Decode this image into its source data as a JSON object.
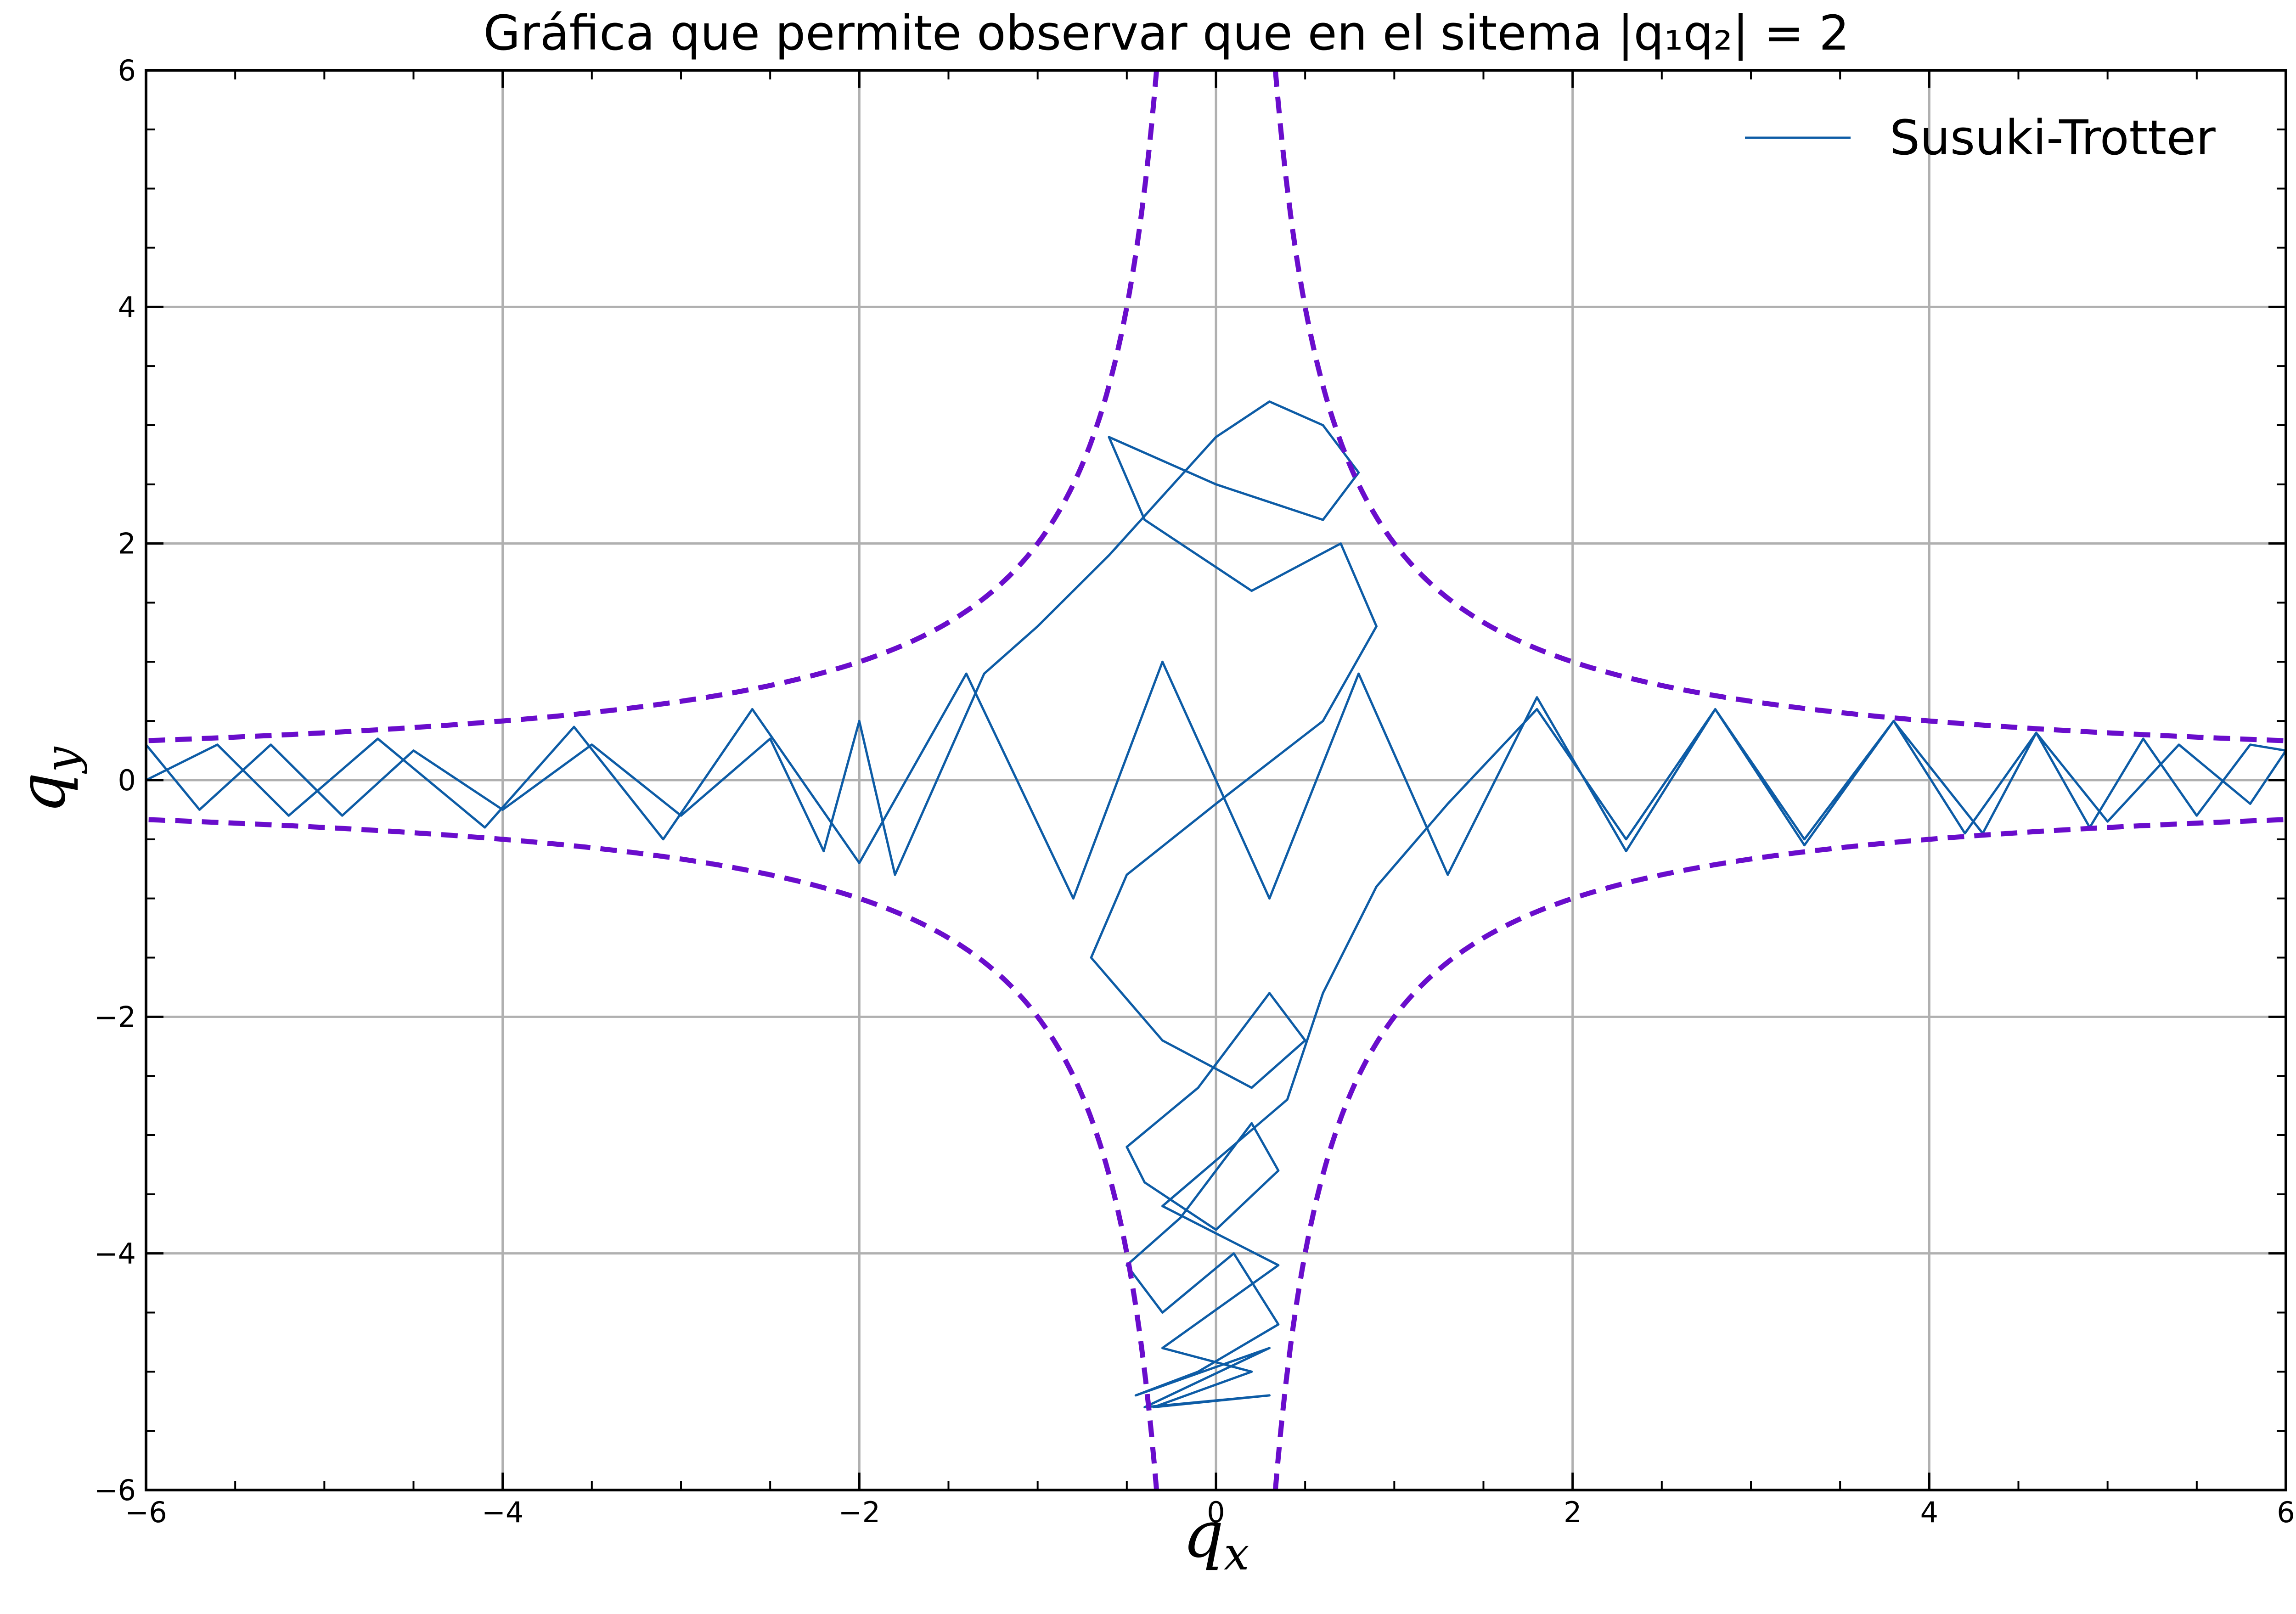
{
  "chart_data": {
    "type": "line",
    "title": "Gráfica que permite observar que en el sitema |q₁q₂| = 2",
    "xlabel": {
      "base": "q",
      "sub": "x"
    },
    "ylabel": {
      "base": "q",
      "sub": "y"
    },
    "xlim": [
      -6,
      6
    ],
    "ylim": [
      -6,
      6
    ],
    "xticks": [
      -6,
      -4,
      -2,
      0,
      2,
      4,
      6
    ],
    "yticks": [
      -6,
      -4,
      -2,
      0,
      2,
      4,
      6
    ],
    "xtick_labels": [
      "−6",
      "−4",
      "−2",
      "0",
      "2",
      "4",
      "6"
    ],
    "ytick_labels": [
      "−6",
      "−4",
      "−2",
      "0",
      "2",
      "4",
      "6"
    ],
    "minor_step": 0.5,
    "grid": true,
    "legend": {
      "position": "top-right",
      "entries": [
        "Susuki-Trotter"
      ]
    },
    "boundary": {
      "relation": "|q1 q2| = 2",
      "product": 2,
      "color": "#6a0dcc",
      "style": "dashed"
    },
    "series": [
      {
        "name": "Susuki-Trotter",
        "color": "#0d5ca6",
        "x": [
          -6.0,
          -5.7,
          -5.3,
          -4.9,
          -4.5,
          -4.0,
          -3.5,
          -3.0,
          -2.5,
          -2.2,
          -2.0,
          -1.8,
          -1.3,
          -1.0,
          -0.6,
          -0.3,
          0.0,
          0.3,
          0.6,
          0.8,
          0.6,
          0.0,
          -0.6,
          -0.4,
          0.2,
          0.7,
          0.9,
          0.6,
          0.0,
          -0.5,
          -0.7,
          -0.3,
          0.2,
          0.5,
          0.3,
          -0.1,
          -0.5,
          -0.4,
          0.0,
          0.35,
          0.2,
          -0.2,
          -0.5,
          -0.3,
          0.1,
          0.35,
          -0.1,
          -0.45,
          0.3,
          -0.4,
          0.3,
          -0.35,
          0.2,
          -0.3,
          0.35,
          -0.3,
          0.4,
          0.6,
          0.9,
          1.3,
          1.8,
          2.3,
          2.8,
          3.3,
          3.8,
          4.3,
          4.6,
          4.9,
          5.2,
          5.5,
          5.8,
          6.0,
          5.8,
          5.4,
          5.0,
          4.6,
          4.2,
          3.8,
          3.3,
          2.8,
          2.3,
          1.8,
          1.3,
          0.8,
          0.3,
          -0.3,
          -0.8,
          -1.4,
          -2.0,
          -2.6,
          -3.1,
          -3.6,
          -4.1,
          -4.7,
          -5.2,
          -5.6,
          -6.0
        ],
        "y": [
          0.3,
          -0.25,
          0.3,
          -0.3,
          0.25,
          -0.25,
          0.3,
          -0.3,
          0.35,
          -0.6,
          0.5,
          -0.8,
          0.9,
          1.3,
          1.9,
          2.4,
          2.9,
          3.2,
          3.0,
          2.6,
          2.2,
          2.5,
          2.9,
          2.2,
          1.6,
          2.0,
          1.3,
          0.5,
          -0.2,
          -0.8,
          -1.5,
          -2.2,
          -2.6,
          -2.2,
          -1.8,
          -2.6,
          -3.1,
          -3.4,
          -3.8,
          -3.3,
          -2.9,
          -3.7,
          -4.1,
          -4.5,
          -4.0,
          -4.6,
          -5.0,
          -5.2,
          -4.8,
          -5.3,
          -5.2,
          -5.3,
          -5.0,
          -4.8,
          -4.1,
          -3.6,
          -2.7,
          -1.8,
          -0.9,
          -0.2,
          0.6,
          -0.5,
          0.6,
          -0.55,
          0.5,
          -0.45,
          0.4,
          -0.4,
          0.35,
          -0.3,
          0.3,
          0.25,
          -0.2,
          0.3,
          -0.35,
          0.4,
          -0.45,
          0.5,
          -0.5,
          0.6,
          -0.6,
          0.7,
          -0.8,
          0.9,
          -1.0,
          1.0,
          -1.0,
          0.9,
          -0.7,
          0.6,
          -0.5,
          0.45,
          -0.4,
          0.35,
          -0.3,
          0.3,
          0.0
        ]
      }
    ]
  }
}
